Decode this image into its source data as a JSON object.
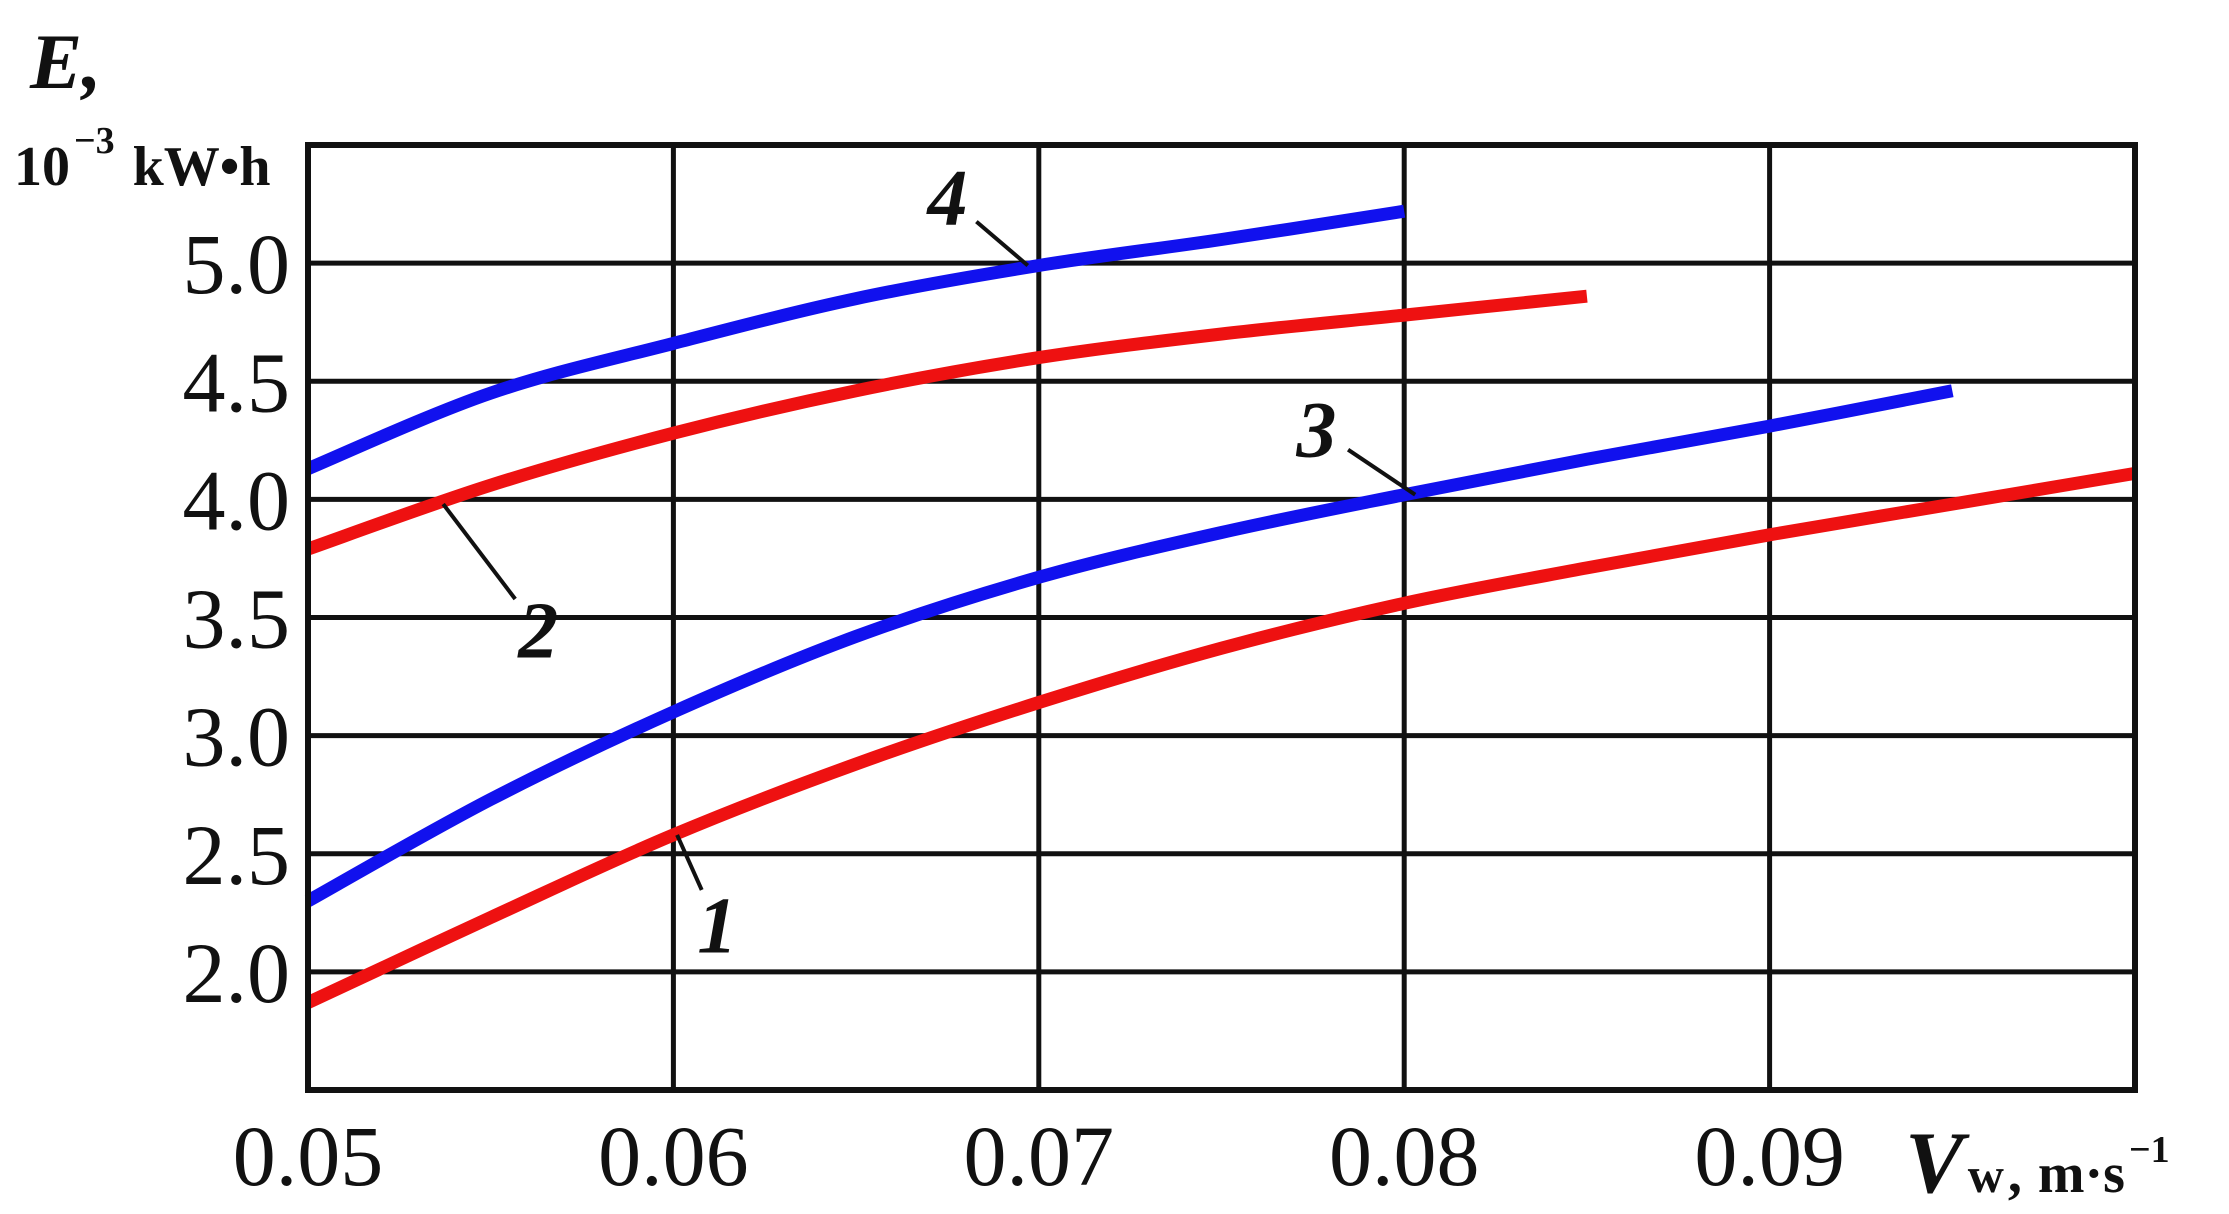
{
  "chart_data": {
    "type": "line",
    "ylabel": "E,",
    "ylabel_unit": {
      "base": "10",
      "exp": "−3",
      "rest": "kW•h"
    },
    "xlabel": {
      "symbol": "V",
      "sub": "w",
      "unit": "m·s",
      "exp": "−1"
    },
    "xlim": [
      0.05,
      0.1
    ],
    "ylim": [
      1.5,
      5.5
    ],
    "x_ticks": [
      0.05,
      0.06,
      0.07,
      0.08,
      0.09,
      0.1
    ],
    "x_tick_labels": [
      "0.05",
      "0.06",
      "0.07",
      "0.08",
      "0.09"
    ],
    "y_ticks": [
      2.0,
      2.5,
      3.0,
      3.5,
      4.0,
      4.5,
      5.0
    ],
    "y_tick_labels": [
      "2.0",
      "2.5",
      "3.0",
      "3.5",
      "4.0",
      "4.5",
      "5.0"
    ],
    "grid": true,
    "series": [
      {
        "name": "1",
        "color": "#ee1111",
        "x": [
          0.05,
          0.055,
          0.06,
          0.065,
          0.07,
          0.075,
          0.08,
          0.085,
          0.09,
          0.095,
          0.1
        ],
        "y": [
          1.87,
          2.23,
          2.58,
          2.88,
          3.14,
          3.37,
          3.56,
          3.71,
          3.85,
          3.98,
          4.11
        ]
      },
      {
        "name": "2",
        "color": "#ee1111",
        "x": [
          0.05,
          0.055,
          0.06,
          0.065,
          0.07,
          0.075,
          0.08,
          0.085
        ],
        "y": [
          3.79,
          4.06,
          4.28,
          4.46,
          4.6,
          4.7,
          4.78,
          4.86
        ]
      },
      {
        "name": "3",
        "color": "#1111ee",
        "x": [
          0.05,
          0.055,
          0.06,
          0.065,
          0.07,
          0.075,
          0.08,
          0.085,
          0.09,
          0.095
        ],
        "y": [
          2.3,
          2.73,
          3.1,
          3.42,
          3.67,
          3.86,
          4.02,
          4.17,
          4.31,
          4.46
        ]
      },
      {
        "name": "4",
        "color": "#1111ee",
        "x": [
          0.05,
          0.055,
          0.06,
          0.065,
          0.07,
          0.075,
          0.08
        ],
        "y": [
          4.13,
          4.45,
          4.66,
          4.85,
          4.99,
          5.1,
          5.22
        ]
      }
    ],
    "annotations": [
      {
        "text": "1",
        "x": 0.0612,
        "y": 2.2,
        "target_x": 0.0601,
        "target_y": 2.58
      },
      {
        "text": "2",
        "x": 0.0563,
        "y": 3.45,
        "target_x": 0.0537,
        "target_y": 3.98
      },
      {
        "text": "3",
        "x": 0.0776,
        "y": 4.3,
        "target_x": 0.0803,
        "target_y": 4.02
      },
      {
        "text": "4",
        "x": 0.0675,
        "y": 5.28,
        "target_x": 0.0697,
        "target_y": 4.99
      }
    ]
  }
}
